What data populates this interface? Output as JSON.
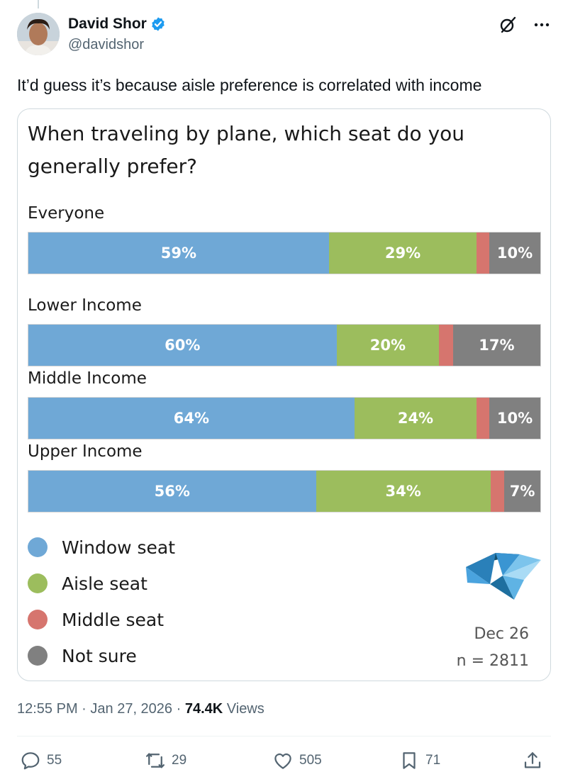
{
  "tweet": {
    "author_name": "David Shor",
    "handle": "@davidshor",
    "text": "It’d guess it’s because aisle preference is correlated with income",
    "time": "12:55 PM",
    "date": "Jan 27, 2026",
    "views_count": "74.4K",
    "views_label": "Views"
  },
  "actions": {
    "replies": "55",
    "retweets": "29",
    "likes": "505",
    "bookmarks": "71"
  },
  "icons": {
    "verified": "verified-badge-icon",
    "grok": "grok-icon",
    "more": "more-icon",
    "reply": "reply-icon",
    "retweet": "retweet-icon",
    "like": "heart-icon",
    "bookmark": "bookmark-icon",
    "share": "share-icon"
  },
  "colors": {
    "verified": "#1d9bf0",
    "window": "#6fa8d6",
    "aisle": "#9cbd5d",
    "middle": "#d6756e",
    "not_sure": "#808080"
  },
  "chart_data": {
    "type": "bar",
    "orientation": "horizontal-stacked",
    "title": "When traveling by plane, which seat do you generally prefer?",
    "categories": [
      "Everyone",
      "Lower Income",
      "Middle Income",
      "Upper Income"
    ],
    "series": [
      {
        "name": "Window seat",
        "values": [
          59,
          60,
          64,
          56
        ],
        "labels": [
          "59%",
          "60%",
          "64%",
          "56%"
        ]
      },
      {
        "name": "Aisle seat",
        "values": [
          29,
          20,
          24,
          34
        ],
        "labels": [
          "29%",
          "20%",
          "24%",
          "34%"
        ]
      },
      {
        "name": "Middle seat",
        "values": [
          2.5,
          2.7,
          2.5,
          2.7
        ],
        "labels": [
          "",
          "",
          "",
          ""
        ]
      },
      {
        "name": "Not sure",
        "values": [
          10,
          17,
          10,
          7
        ],
        "labels": [
          "10%",
          "17%",
          "10%",
          "7%"
        ]
      }
    ],
    "legend": [
      "Window seat",
      "Aisle seat",
      "Middle seat",
      "Not sure"
    ],
    "legend_position": "bottom-left",
    "date": "Dec 26",
    "sample": "n = 2811"
  }
}
